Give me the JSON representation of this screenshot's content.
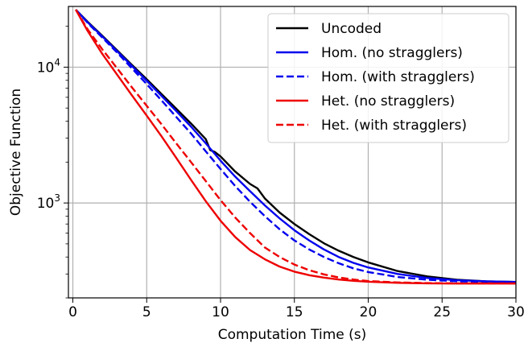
{
  "chart_data": {
    "type": "line",
    "title": "",
    "xlabel": "Computation Time (s)",
    "ylabel": "Objective Function",
    "xlim": [
      -0.3,
      30
    ],
    "ylim": [
      200,
      28000
    ],
    "yscale": "log",
    "grid": true,
    "legend_position": "top-right",
    "x_ticks": [
      0,
      5,
      10,
      15,
      20,
      25,
      30
    ],
    "x_tick_labels": [
      "0",
      "5",
      "10",
      "15",
      "20",
      "25",
      "30"
    ],
    "y_ticks": [
      1000,
      10000
    ],
    "y_tick_labels": [
      {
        "base": "10",
        "exp": "3"
      },
      {
        "base": "10",
        "exp": "4"
      }
    ],
    "series": [
      {
        "name": "Uncoded",
        "color": "#000000",
        "dash": "solid",
        "x": [
          0.2,
          1,
          2,
          3,
          4,
          5,
          6,
          7,
          8,
          9,
          9.3,
          9.6,
          10,
          11,
          12,
          12.5,
          13,
          14,
          15,
          16,
          17,
          18,
          19,
          20,
          22,
          24,
          26,
          28,
          30
        ],
        "y": [
          26500,
          21600,
          17000,
          13300,
          10400,
          8150,
          6350,
          4950,
          3850,
          2950,
          2450,
          2380,
          2200,
          1700,
          1380,
          1280,
          1080,
          850,
          700,
          590,
          505,
          445,
          400,
          365,
          315,
          288,
          272,
          265,
          262
        ]
      },
      {
        "name": "Hom. (no stragglers)",
        "color": "#0000ee",
        "dash": "solid",
        "x": [
          0.2,
          1,
          2,
          3,
          4,
          5,
          6,
          7,
          8,
          9,
          10,
          11,
          12,
          13,
          14,
          15,
          16,
          17,
          18,
          19,
          20,
          22,
          24,
          26,
          28,
          30
        ],
        "y": [
          26500,
          21400,
          16800,
          13100,
          10200,
          7950,
          6150,
          4750,
          3650,
          2750,
          2050,
          1560,
          1220,
          960,
          770,
          630,
          530,
          455,
          400,
          362,
          335,
          300,
          280,
          270,
          265,
          262
        ]
      },
      {
        "name": "Hom. (with stragglers)",
        "color": "#0000ee",
        "dash": "dashed",
        "x": [
          0.2,
          1,
          2,
          3,
          4,
          5,
          6,
          7,
          8,
          9,
          10,
          11,
          12,
          13,
          14,
          15,
          16,
          17,
          18,
          19,
          20,
          22,
          24,
          26,
          28,
          30
        ],
        "y": [
          26500,
          21200,
          16500,
          12800,
          9800,
          7500,
          5700,
          4300,
          3250,
          2400,
          1780,
          1330,
          1020,
          800,
          640,
          530,
          455,
          400,
          360,
          330,
          310,
          285,
          272,
          265,
          262,
          260
        ]
      },
      {
        "name": "Het. (no stragglers)",
        "color": "#ee0000",
        "dash": "solid",
        "x": [
          0.2,
          1,
          2,
          3,
          4,
          5,
          6,
          7,
          8,
          9,
          10,
          11,
          12,
          13,
          14,
          15,
          16,
          17,
          18,
          19,
          20,
          22,
          24,
          26,
          28,
          30
        ],
        "y": [
          26500,
          18500,
          12500,
          8800,
          6200,
          4400,
          3100,
          2150,
          1480,
          1030,
          740,
          560,
          450,
          385,
          340,
          312,
          294,
          282,
          273,
          267,
          263,
          258,
          256,
          255,
          255,
          255
        ]
      },
      {
        "name": "Het. (with stragglers)",
        "color": "#ee0000",
        "dash": "dashed",
        "x": [
          0.2,
          1,
          2,
          3,
          4,
          5,
          6,
          7,
          8,
          9,
          10,
          11,
          12,
          13,
          14,
          15,
          16,
          17,
          18,
          19,
          20,
          22,
          24,
          26,
          28,
          30
        ],
        "y": [
          26500,
          19000,
          13500,
          9800,
          7100,
          5200,
          3800,
          2750,
          2000,
          1450,
          1050,
          780,
          600,
          470,
          400,
          352,
          320,
          298,
          283,
          273,
          266,
          260,
          257,
          256,
          256,
          256
        ]
      }
    ]
  }
}
